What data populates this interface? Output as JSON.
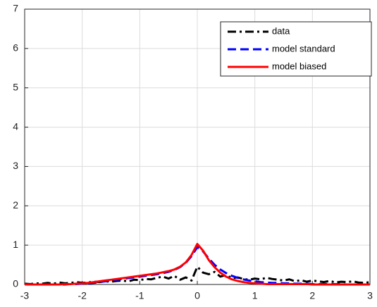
{
  "chart_data": {
    "type": "line",
    "x": [
      -3,
      -2.9,
      -2.8,
      -2.7,
      -2.6,
      -2.5,
      -2.4,
      -2.3,
      -2.2,
      -2.1,
      -2,
      -1.9,
      -1.8,
      -1.7,
      -1.6,
      -1.5,
      -1.4,
      -1.3,
      -1.2,
      -1.1,
      -1,
      -0.9,
      -0.8,
      -0.7,
      -0.6,
      -0.5,
      -0.4,
      -0.3,
      -0.2,
      -0.1,
      0,
      0.1,
      0.2,
      0.3,
      0.4,
      0.5,
      0.6,
      0.7,
      0.8,
      0.9,
      1,
      1.1,
      1.2,
      1.3,
      1.4,
      1.5,
      1.6,
      1.7,
      1.8,
      1.9,
      2,
      2.1,
      2.2,
      2.3,
      2.4,
      2.5,
      2.6,
      2.7,
      2.8,
      2.9,
      3
    ],
    "series": [
      {
        "name": "data",
        "color": "#000000",
        "linestyle": "dashdot",
        "values": [
          0.02,
          0.01,
          0.03,
          0.02,
          0.04,
          0.02,
          0.05,
          0.03,
          0.04,
          0.06,
          0.04,
          0.05,
          0.07,
          0.06,
          0.08,
          0.07,
          0.09,
          0.1,
          0.08,
          0.12,
          0.11,
          0.14,
          0.13,
          0.17,
          0.2,
          0.15,
          0.22,
          0.12,
          0.18,
          0.1,
          0.45,
          0.3,
          0.26,
          0.32,
          0.2,
          0.24,
          0.16,
          0.18,
          0.14,
          0.12,
          0.15,
          0.13,
          0.17,
          0.14,
          0.12,
          0.1,
          0.13,
          0.08,
          0.11,
          0.07,
          0.1,
          0.08,
          0.06,
          0.09,
          0.05,
          0.07,
          0.06,
          0.08,
          0.05,
          0.04,
          0.06
        ]
      },
      {
        "name": "model standard",
        "color": "#0000ff",
        "linestyle": "dashed",
        "values": [
          0,
          0,
          0,
          0,
          0,
          0,
          0,
          0,
          0.01,
          0.01,
          0.02,
          0.03,
          0.04,
          0.06,
          0.08,
          0.1,
          0.12,
          0.14,
          0.16,
          0.18,
          0.2,
          0.22,
          0.24,
          0.26,
          0.29,
          0.32,
          0.37,
          0.44,
          0.55,
          0.72,
          0.95,
          0.84,
          0.66,
          0.5,
          0.38,
          0.29,
          0.22,
          0.17,
          0.13,
          0.1,
          0.08,
          0.06,
          0.05,
          0.04,
          0.04,
          0.03,
          0.03,
          0.02,
          0.02,
          0.02,
          0.01,
          0.01,
          0.01,
          0.01,
          0.01,
          0.01,
          0,
          0,
          0,
          0,
          0
        ]
      },
      {
        "name": "model biased",
        "color": "#ff0000",
        "linestyle": "solid",
        "values": [
          0,
          0,
          0,
          0,
          0,
          0,
          0,
          0.01,
          0.01,
          0.02,
          0.03,
          0.04,
          0.06,
          0.08,
          0.1,
          0.12,
          0.14,
          0.16,
          0.18,
          0.2,
          0.22,
          0.24,
          0.26,
          0.28,
          0.31,
          0.34,
          0.38,
          0.45,
          0.56,
          0.75,
          1.03,
          0.86,
          0.62,
          0.44,
          0.3,
          0.2,
          0.13,
          0.09,
          0.06,
          0.04,
          0.03,
          0.02,
          0.01,
          0.01,
          0.01,
          0.01,
          0.01,
          0.01,
          0.01,
          0.01,
          0,
          0,
          0,
          0,
          0,
          0,
          0,
          0,
          0,
          0,
          0
        ]
      }
    ],
    "xlim": [
      -3,
      3
    ],
    "xticks": [
      -3,
      -2,
      -1,
      0,
      1,
      2,
      3
    ],
    "ylim": [
      0,
      7
    ],
    "yticks": [
      0,
      1,
      2,
      3,
      4,
      5,
      6,
      7
    ],
    "grid": true,
    "legend": "top-right"
  }
}
